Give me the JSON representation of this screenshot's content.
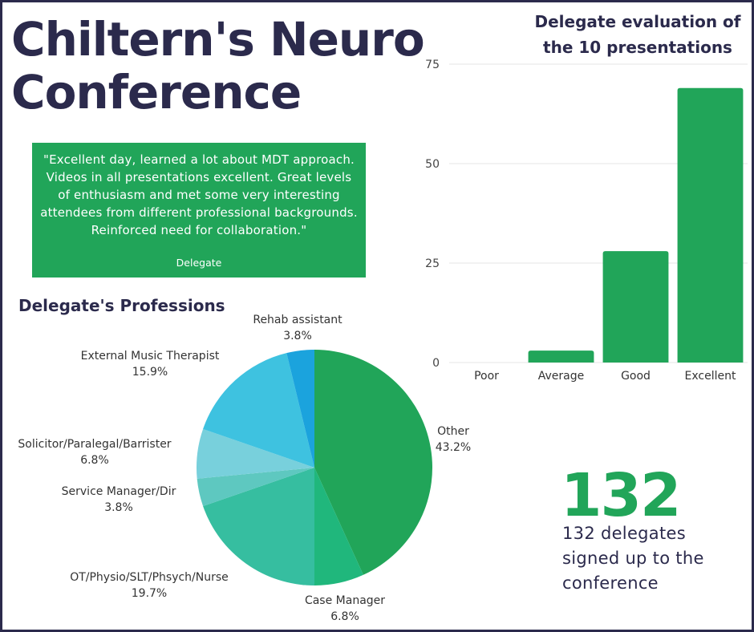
{
  "title_line1": "Chiltern's Neuro",
  "title_line2": "Conference",
  "quote": {
    "text": "\"Excellent day, learned a lot about MDT approach. Videos in all presentations excellent. Great levels of enthusiasm and met some very interesting attendees from different professional backgrounds. Reinforced need for collaboration.\"",
    "author": "Delegate"
  },
  "stat": {
    "number": "132",
    "caption": "132 delegates signed up to the conference"
  },
  "colors": {
    "navy": "#2b2a4c",
    "green": "#21a559"
  },
  "chart_data": [
    {
      "type": "bar",
      "title_line1": "Delegate evaluation of",
      "title_line2": "the 10 presentations",
      "categories": [
        "Poor",
        "Average",
        "Good",
        "Excellent"
      ],
      "values": [
        0,
        3,
        28,
        69
      ],
      "ylim": [
        0,
        75
      ],
      "yticks": [
        0,
        25,
        50,
        75
      ],
      "grid": true,
      "color": "#21a559"
    },
    {
      "type": "pie",
      "title": "Delegate's Professions",
      "slices": [
        {
          "label": "Other",
          "pct_label": "43.2%",
          "value": 43.2,
          "color": "#21a559"
        },
        {
          "label": "Case Manager",
          "pct_label": "6.8%",
          "value": 6.8,
          "color": "#20b77c"
        },
        {
          "label": "OT/Physio/SLT/Phsych/Nurse",
          "pct_label": "19.7%",
          "value": 19.7,
          "color": "#36bea0"
        },
        {
          "label": "Service Manager/Dir",
          "pct_label": "3.8%",
          "value": 3.8,
          "color": "#5ec8c0"
        },
        {
          "label": "Solicitor/Paralegal/Barrister",
          "pct_label": "6.8%",
          "value": 6.8,
          "color": "#78d0dc"
        },
        {
          "label": "External Music Therapist",
          "pct_label": "15.9%",
          "value": 15.9,
          "color": "#3ec2e0"
        },
        {
          "label": "Rehab assistant",
          "pct_label": "3.8%",
          "value": 3.8,
          "color": "#1ba3dd"
        }
      ]
    }
  ]
}
